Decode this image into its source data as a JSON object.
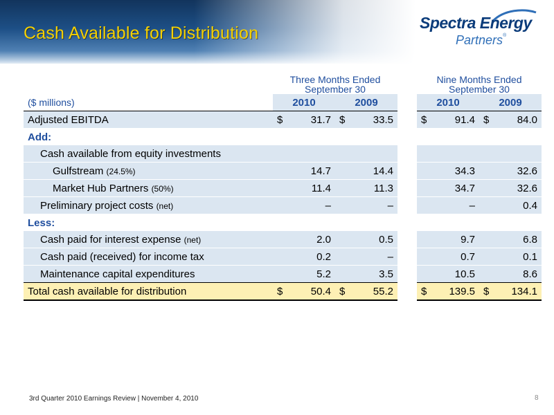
{
  "header": {
    "title": "Cash Available for Distribution",
    "logo_name": "Spectra Energy",
    "logo_sub": "Partners",
    "logo_reg": "®"
  },
  "table": {
    "groups": {
      "three_months": "Three Months Ended",
      "three_months_sub": "September 30",
      "nine_months": "Nine Months Ended",
      "nine_months_sub": "September 30"
    },
    "units": "($ millions)",
    "years": [
      "2010",
      "2009",
      "2010",
      "2009"
    ],
    "rows": {
      "adjusted_ebitda": {
        "label": "Adjusted EBITDA",
        "values": [
          {
            "cur": "$",
            "num": "31.7"
          },
          {
            "cur": "$",
            "num": "33.5"
          },
          {
            "cur": "$",
            "num": "91.4"
          },
          {
            "cur": "$",
            "num": "84.0"
          }
        ]
      },
      "add": {
        "label": "Add:"
      },
      "equity": {
        "label": "Cash available from equity investments"
      },
      "gulfstream": {
        "label": "Gulfstream",
        "note": "(24.5%)",
        "values": [
          "14.7",
          "14.4",
          "34.3",
          "32.6"
        ]
      },
      "mhp": {
        "label": "Market Hub Partners",
        "note": "(50%)",
        "values": [
          "11.4",
          "11.3",
          "34.7",
          "32.6"
        ]
      },
      "prelim": {
        "label": "Preliminary project costs",
        "note": "(net)",
        "values": [
          "–",
          "–",
          "–",
          "0.4"
        ]
      },
      "less": {
        "label": "Less:"
      },
      "interest": {
        "label": "Cash paid for interest expense",
        "note": "(net)",
        "values": [
          "2.0",
          "0.5",
          "9.7",
          "6.8"
        ]
      },
      "tax": {
        "label": "Cash paid (received) for income tax",
        "values": [
          "0.2",
          "–",
          "0.7",
          "0.1"
        ]
      },
      "maint": {
        "label": "Maintenance capital expenditures",
        "values": [
          "5.2",
          "3.5",
          "10.5",
          "8.6"
        ]
      },
      "total": {
        "label": "Total cash available for distribution",
        "values": [
          {
            "cur": "$",
            "num": "50.4"
          },
          {
            "cur": "$",
            "num": "55.2"
          },
          {
            "cur": "$",
            "num": "139.5"
          },
          {
            "cur": "$",
            "num": "134.1"
          }
        ]
      }
    }
  },
  "footer": {
    "text": "3rd Quarter 2010 Earnings Review | November 4, 2010",
    "page": "8"
  },
  "colors": {
    "title": "#f5d000",
    "header_blue": "#1d4f86",
    "accent_blue": "#1f4e9e",
    "row_shade": "#dbe6f1",
    "total_shade": "#fdf0b4"
  }
}
